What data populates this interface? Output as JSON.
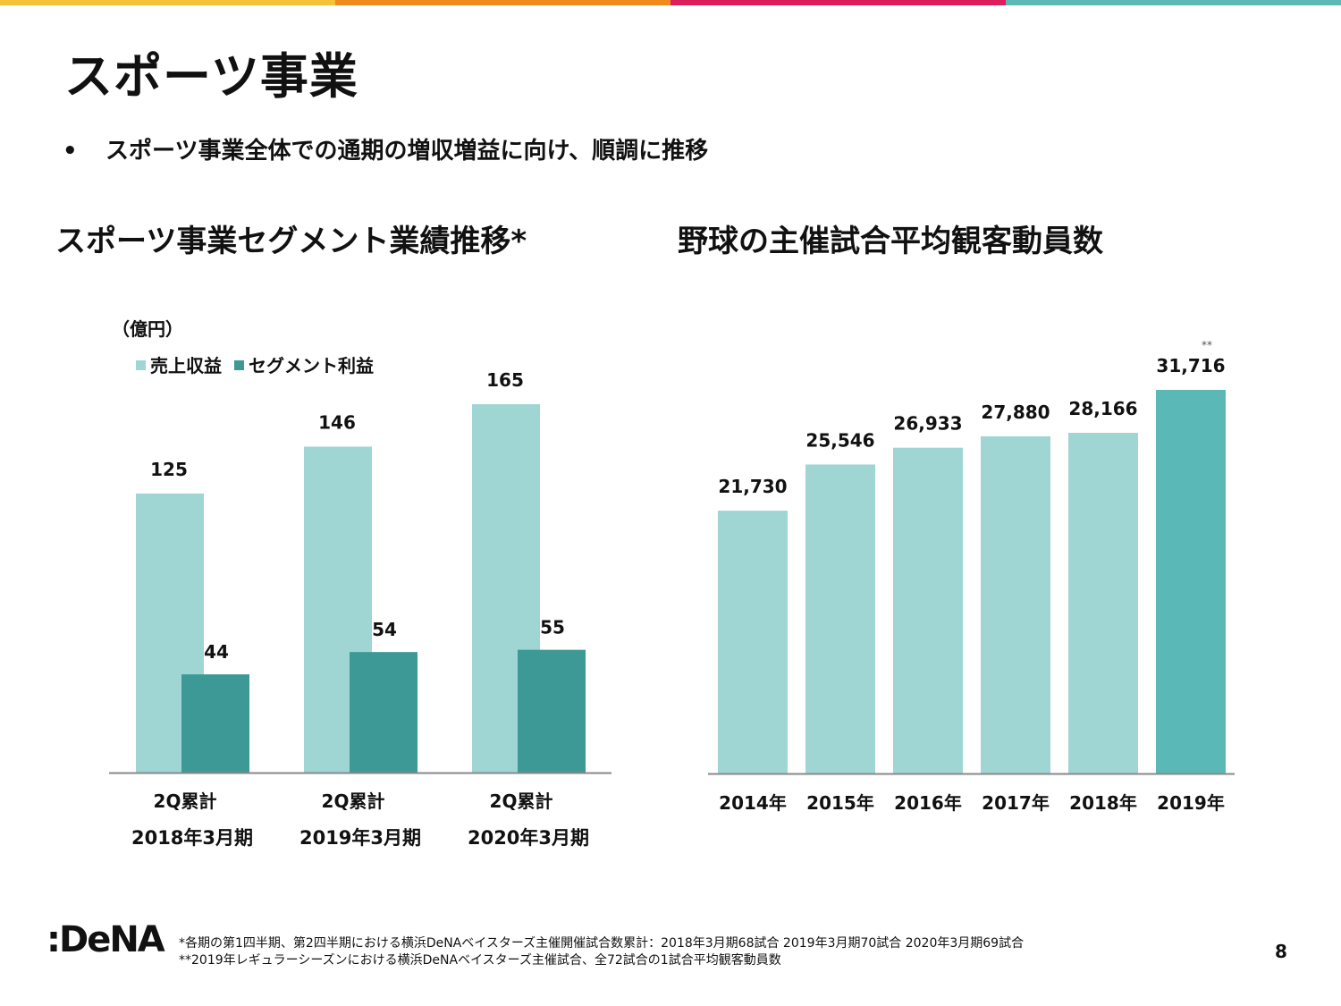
{
  "colors": {
    "topbar": [
      "#f5c237",
      "#f08a1c",
      "#dc1f5c",
      "#5ab8b6"
    ],
    "light_teal": "#9fd6d3",
    "dark_teal": "#3d9996",
    "highlight_teal": "#5ab8b6",
    "axis": "#888888"
  },
  "header": {
    "title": "スポーツ事業",
    "bullet_symbol": "•",
    "bullet_text": "スポーツ事業全体での通期の増収増益に向け、順調に推移"
  },
  "left_section_title": "スポーツ事業セグメント業績推移*",
  "right_section_title": "野球の主催試合平均観客動員数",
  "chart_data": [
    {
      "type": "bar",
      "unit_label": "（億円）",
      "categories": [
        [
          "2Q累計",
          "2018年3月期"
        ],
        [
          "2Q累計",
          "2019年3月期"
        ],
        [
          "2Q累計",
          "2020年3月期"
        ]
      ],
      "series": [
        {
          "name": "売上収益",
          "values": [
            125,
            146,
            165
          ],
          "labels": [
            "125",
            "146",
            "165"
          ],
          "color": "#9fd6d3"
        },
        {
          "name": "セグメント利益",
          "values": [
            44,
            54,
            55
          ],
          "labels": [
            "44",
            "54",
            "55"
          ],
          "color": "#3d9996"
        }
      ],
      "ylim": [
        0,
        165
      ],
      "legend": "top-left",
      "grid": false
    },
    {
      "type": "bar",
      "categories": [
        "2014年",
        "2015年",
        "2016年",
        "2017年",
        "2018年",
        "2019年"
      ],
      "values": [
        21730,
        25546,
        26933,
        27880,
        28166,
        31716
      ],
      "labels": [
        "21,730",
        "25,546",
        "26,933",
        "27,880",
        "28,166",
        "31,716"
      ],
      "highlight_index": 5,
      "highlight_note": "**",
      "ylim": [
        0,
        31716
      ],
      "grid": false
    }
  ],
  "footer": {
    "note1": "*各期の第1四半期、第2四半期における横浜DeNAベイスターズ主催開催試合数累計：2018年3月期68試合 2019年3月期70試合 2020年3月期69試合",
    "note2": "**2019年レギュラーシーズンにおける横浜DeNAベイスターズ主催試合、全72試合の1試合平均観客動員数",
    "logo_text": ":DeNA",
    "page_number": "8"
  }
}
